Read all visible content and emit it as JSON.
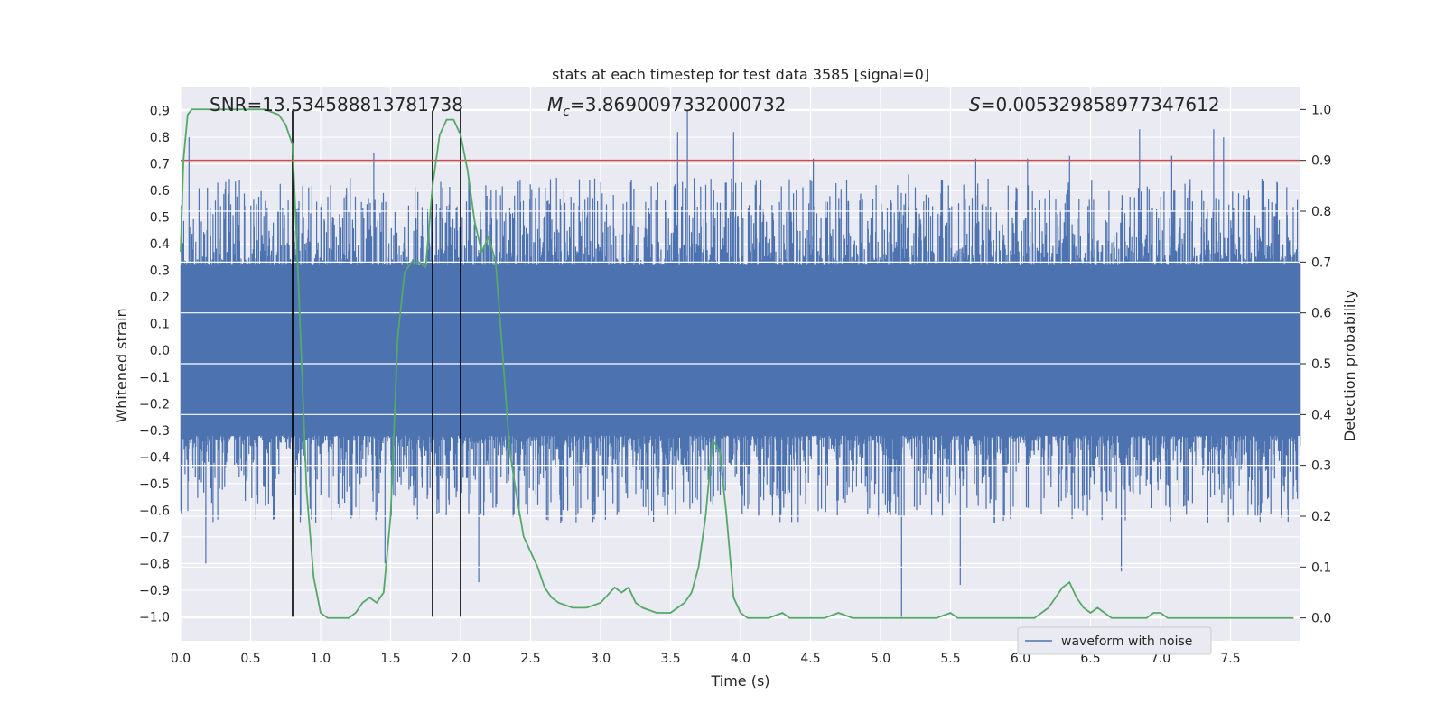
{
  "chart_data": {
    "type": "line",
    "title": "stats at each timestep for test data 3585 [signal=0]",
    "xlabel": "Time (s)",
    "ylabel_left": "Whitened strain",
    "ylabel_right": "Detection probability",
    "xlim": [
      0.0,
      8.0
    ],
    "ylim_left": [
      -1.09,
      0.99
    ],
    "ylim_right": [
      -0.045,
      1.045
    ],
    "x_ticks": [
      "0.0",
      "0.5",
      "1.0",
      "1.5",
      "2.0",
      "2.5",
      "3.0",
      "3.5",
      "4.0",
      "4.5",
      "5.0",
      "5.5",
      "6.0",
      "6.5",
      "7.0",
      "7.5"
    ],
    "y_left_ticks": [
      "0.9",
      "0.8",
      "0.7",
      "0.6",
      "0.5",
      "0.4",
      "0.3",
      "0.2",
      "0.1",
      "0.0",
      "-0.1",
      "-0.2",
      "-0.3",
      "-0.4",
      "-0.5",
      "-0.6",
      "-0.7",
      "-0.8",
      "-0.9",
      "-1.0"
    ],
    "y_right_ticks": [
      "1.0",
      "0.9",
      "0.8",
      "0.7",
      "0.6",
      "0.5",
      "0.4",
      "0.3",
      "0.2",
      "0.1",
      "0.0"
    ],
    "grid": true,
    "legend": {
      "placement": "lower-right",
      "entries": [
        "waveform with noise"
      ]
    },
    "annotations": {
      "snr": "SNR=13.534588813781738",
      "mc_symbol": "M",
      "mc_sub": "c",
      "mc_value": "=3.8690097332000732",
      "s_symbol": "S",
      "s_value": "=0.005329858977347612"
    },
    "threshold_line": {
      "axis": "right",
      "value": 0.9,
      "color": "#c44e52"
    },
    "vertical_markers": [
      0.8,
      1.8,
      2.0
    ],
    "series": [
      {
        "name": "waveform with noise",
        "axis": "left",
        "color": "#4c72b0",
        "typical_range": [
          -0.32,
          0.32
        ],
        "extremes": [
          [
            0.06,
            0.8
          ],
          [
            0.18,
            -0.8
          ],
          [
            0.42,
            0.64
          ],
          [
            0.82,
            -0.46
          ],
          [
            1.2,
            0.52
          ],
          [
            1.38,
            0.74
          ],
          [
            1.46,
            -0.8
          ],
          [
            2.13,
            -0.87
          ],
          [
            2.18,
            0.62
          ],
          [
            3.22,
            0.64
          ],
          [
            3.55,
            0.82
          ],
          [
            3.62,
            0.9
          ],
          [
            3.95,
            0.82
          ],
          [
            4.52,
            0.72
          ],
          [
            5.15,
            -1.0
          ],
          [
            5.2,
            0.66
          ],
          [
            5.57,
            -0.88
          ],
          [
            5.68,
            0.72
          ],
          [
            6.05,
            0.72
          ],
          [
            6.35,
            0.73
          ],
          [
            6.72,
            -0.83
          ],
          [
            6.85,
            0.83
          ],
          [
            7.08,
            0.73
          ],
          [
            7.38,
            0.83
          ],
          [
            7.45,
            0.8
          ]
        ]
      },
      {
        "name": "detection probability",
        "axis": "right",
        "color": "#55a868",
        "x": [
          0.0,
          0.02,
          0.05,
          0.08,
          0.12,
          0.2,
          0.3,
          0.4,
          0.5,
          0.6,
          0.7,
          0.75,
          0.8,
          0.85,
          0.9,
          0.95,
          1.0,
          1.05,
          1.1,
          1.2,
          1.25,
          1.3,
          1.35,
          1.4,
          1.45,
          1.5,
          1.55,
          1.6,
          1.65,
          1.7,
          1.75,
          1.8,
          1.85,
          1.9,
          1.95,
          2.0,
          2.05,
          2.1,
          2.15,
          2.2,
          2.25,
          2.3,
          2.35,
          2.4,
          2.45,
          2.5,
          2.55,
          2.6,
          2.65,
          2.7,
          2.8,
          2.9,
          3.0,
          3.1,
          3.15,
          3.2,
          3.25,
          3.3,
          3.4,
          3.5,
          3.55,
          3.6,
          3.65,
          3.7,
          3.75,
          3.8,
          3.85,
          3.9,
          3.95,
          4.0,
          4.05,
          4.1,
          4.2,
          4.3,
          4.35,
          4.4,
          4.5,
          4.6,
          4.7,
          4.8,
          4.9,
          5.0,
          5.1,
          5.2,
          5.3,
          5.4,
          5.5,
          5.55,
          5.6,
          5.7,
          5.8,
          5.9,
          6.0,
          6.1,
          6.15,
          6.2,
          6.25,
          6.3,
          6.35,
          6.4,
          6.45,
          6.5,
          6.55,
          6.6,
          6.65,
          6.7,
          6.8,
          6.9,
          6.95,
          7.0,
          7.05,
          7.1,
          7.2,
          7.3,
          7.4,
          7.5,
          7.6,
          7.7,
          7.8,
          7.9,
          7.95
        ],
        "y": [
          0.72,
          0.9,
          0.99,
          1.0,
          1.0,
          1.0,
          1.0,
          1.0,
          1.0,
          1.0,
          0.99,
          0.97,
          0.93,
          0.6,
          0.25,
          0.08,
          0.01,
          0.0,
          0.0,
          0.0,
          0.01,
          0.03,
          0.04,
          0.03,
          0.05,
          0.2,
          0.55,
          0.68,
          0.7,
          0.7,
          0.69,
          0.85,
          0.95,
          0.98,
          0.98,
          0.95,
          0.88,
          0.78,
          0.72,
          0.75,
          0.7,
          0.52,
          0.33,
          0.24,
          0.16,
          0.13,
          0.1,
          0.06,
          0.04,
          0.03,
          0.02,
          0.02,
          0.03,
          0.06,
          0.05,
          0.06,
          0.03,
          0.02,
          0.01,
          0.01,
          0.02,
          0.03,
          0.05,
          0.1,
          0.2,
          0.35,
          0.33,
          0.2,
          0.04,
          0.01,
          0.0,
          0.0,
          0.0,
          0.01,
          0.0,
          0.0,
          0.0,
          0.0,
          0.01,
          0.0,
          0.0,
          0.0,
          0.0,
          0.0,
          0.0,
          0.0,
          0.01,
          0.0,
          0.0,
          0.0,
          0.0,
          0.0,
          0.0,
          0.0,
          0.01,
          0.02,
          0.04,
          0.06,
          0.07,
          0.04,
          0.02,
          0.01,
          0.02,
          0.01,
          0.0,
          0.0,
          0.0,
          0.0,
          0.01,
          0.01,
          0.0,
          0.0,
          0.0,
          0.0,
          0.0,
          0.0,
          0.0,
          0.0,
          0.0,
          0.0,
          0.0
        ]
      }
    ]
  }
}
